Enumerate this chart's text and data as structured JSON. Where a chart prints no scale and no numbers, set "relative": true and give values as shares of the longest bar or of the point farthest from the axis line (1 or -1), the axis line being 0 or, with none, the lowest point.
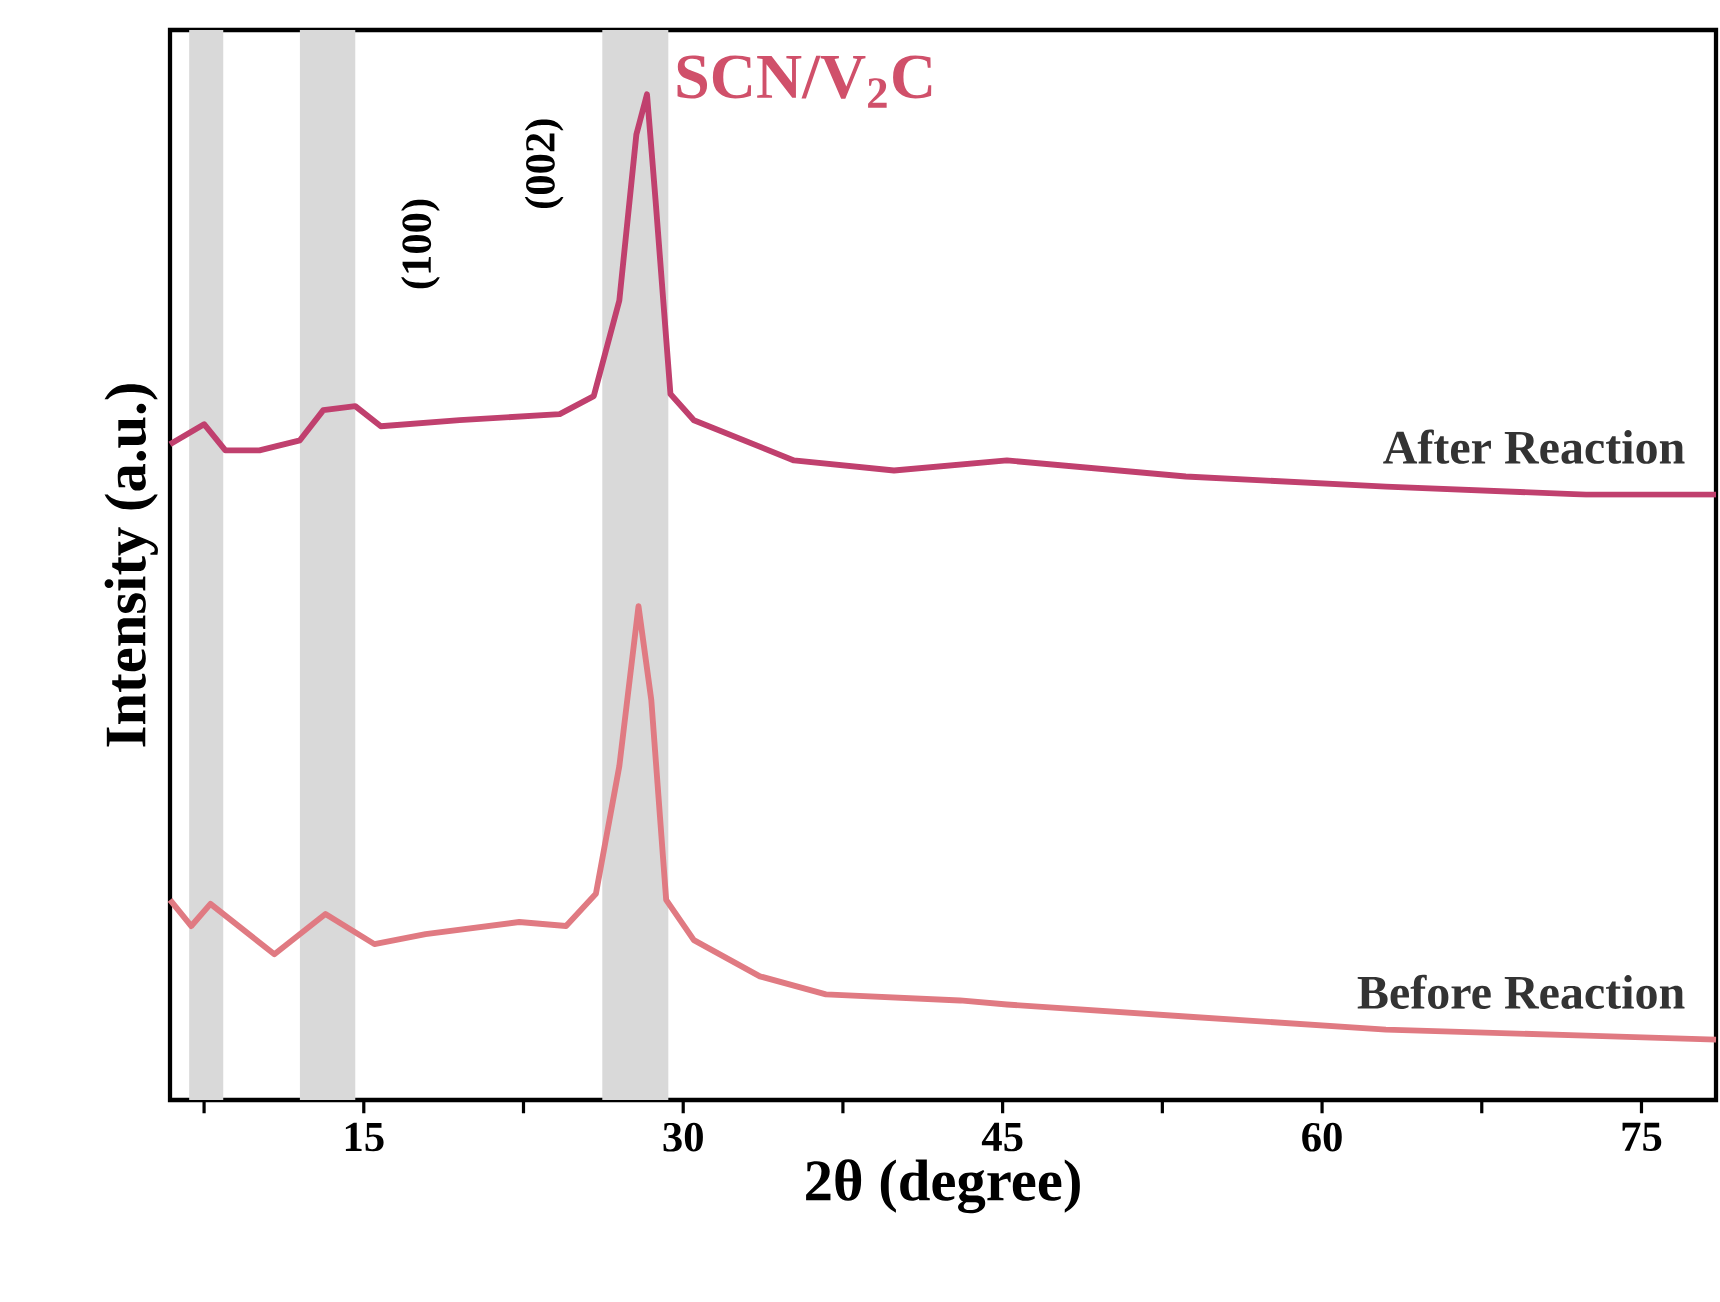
{
  "chart_data": {
    "type": "line",
    "title": "SCN/V$_{2}$C",
    "xlabel": "2θ (degree)",
    "ylabel": "Intensity (a.u.)",
    "relative": true,
    "legend": false,
    "tick_labels": "x",
    "line_style": "solid",
    "marker": "none",
    "xlim": [
      5.9,
      78.5
    ],
    "xticks": [
      {
        "value": 7.5,
        "label": null
      },
      15,
      {
        "value": 22.5,
        "label": null
      },
      30,
      {
        "value": 37.5,
        "label": null
      },
      45,
      {
        "value": 52.5,
        "label": null
      },
      60,
      {
        "value": 67.5,
        "label": null
      },
      75
    ],
    "series": [
      {
        "name": "After Reaction",
        "color": "#c0406e",
        "x": [
          5.9,
          7.5,
          8.5,
          10.1,
          12.0,
          13.1,
          14.6,
          15.8,
          19.5,
          24.2,
          25.8,
          27.0,
          27.8,
          28.3,
          28.7,
          29.4,
          30.5,
          35.2,
          39.9,
          45.2,
          53.6,
          63,
          72.4,
          78.5
        ],
        "values": [
          0.652,
          0.672,
          0.646,
          0.646,
          0.656,
          0.686,
          0.69,
          0.67,
          0.676,
          0.682,
          0.7,
          0.795,
          0.96,
          1.0,
          0.895,
          0.702,
          0.676,
          0.636,
          0.626,
          0.636,
          0.62,
          0.61,
          0.602,
          0.602
        ]
      },
      {
        "name": "Before Reaction",
        "color": "#e07a82",
        "x": [
          5.9,
          6.9,
          7.8,
          10.8,
          13.2,
          15.5,
          17.9,
          22.3,
          24.5,
          25.9,
          27.0,
          27.9,
          28.5,
          29.2,
          30.5,
          33.6,
          36.7,
          43,
          45.2,
          53.6,
          63,
          72.4,
          78.5
        ],
        "values": [
          0.199,
          0.173,
          0.195,
          0.145,
          0.185,
          0.155,
          0.165,
          0.177,
          0.173,
          0.205,
          0.332,
          0.491,
          0.398,
          0.199,
          0.159,
          0.123,
          0.105,
          0.099,
          0.095,
          0.083,
          0.07,
          0.064,
          0.06
        ]
      }
    ],
    "bands": [
      {
        "axis": "x",
        "from": 6.8,
        "to": 8.4,
        "color": "#d9d9d9"
      },
      {
        "axis": "x",
        "from": 12.0,
        "to": 14.6,
        "color": "#d9d9d9"
      },
      {
        "axis": "x",
        "from": 26.2,
        "to": 29.3,
        "color": "#d9d9d9"
      }
    ],
    "annotations": [
      "(100)",
      "(002)"
    ]
  }
}
